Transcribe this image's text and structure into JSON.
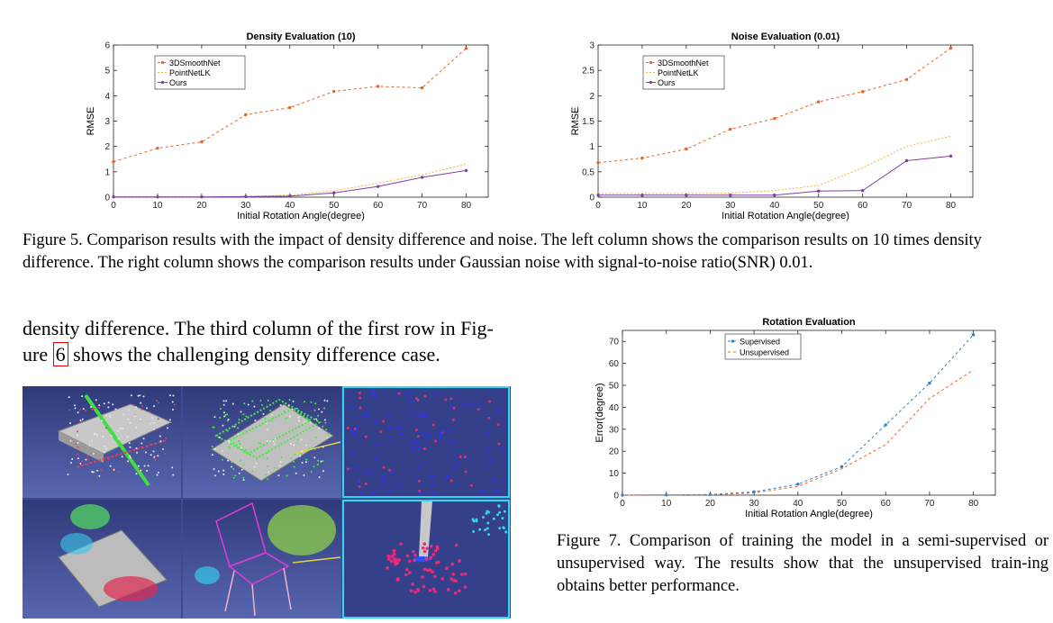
{
  "figure5": {
    "caption": "Figure 5. Comparison results with the impact of density difference and noise. The left column shows the comparison results on 10 times density difference. The right column shows the comparison results under Gaussian noise with signal-to-noise ratio(SNR) 0.01."
  },
  "body": {
    "text_before": "density difference. The third column of the first row in Fig-ure ",
    "ref": "6",
    "text_after": " shows the challenging density difference case."
  },
  "figure7": {
    "caption": "Figure 7. Comparison of training the model in a semi-supervised or unsupervised way. The results show that the unsupervised train-ing obtains better performance."
  },
  "figure6_images": {
    "description_icons": [
      "point-cloud-table",
      "point-cloud-box",
      "point-cloud-zoom-blue",
      "point-cloud-multi",
      "point-cloud-chair",
      "point-cloud-zoom-pink"
    ]
  },
  "chart_data": [
    {
      "type": "line",
      "title": "Density Evaluation (10)",
      "xlabel": "Initial Rotation Angle(degree)",
      "ylabel": "RMSE",
      "x": [
        0,
        10,
        20,
        30,
        40,
        50,
        60,
        70,
        80
      ],
      "xlim": [
        0,
        85
      ],
      "ylim": [
        0,
        6
      ],
      "xticks": [
        0,
        10,
        20,
        30,
        40,
        50,
        60,
        70,
        80
      ],
      "yticks": [
        0,
        1,
        2,
        3,
        4,
        5,
        6
      ],
      "legend_position": "top-left",
      "series": [
        {
          "name": "3DSmoothNet",
          "color": "#e0642a",
          "dash": "3,3",
          "marker": "dot",
          "values": [
            1.4,
            1.93,
            2.18,
            3.25,
            3.53,
            4.17,
            4.37,
            4.31,
            5.87
          ]
        },
        {
          "name": "PointNetLK",
          "color": "#f0b63c",
          "dash": "2,2",
          "marker": "none",
          "values": [
            0.02,
            0.02,
            0.02,
            0.03,
            0.08,
            0.25,
            0.55,
            0.88,
            1.3
          ]
        },
        {
          "name": "Ours",
          "color": "#7d3fa6",
          "dash": "",
          "marker": "dot",
          "values": [
            0.01,
            0.01,
            0.01,
            0.02,
            0.04,
            0.17,
            0.42,
            0.78,
            1.05
          ]
        }
      ]
    },
    {
      "type": "line",
      "title": "Noise Evaluation (0.01)",
      "xlabel": "Initial Rotation Angle(degree)",
      "ylabel": "RMSE",
      "x": [
        0,
        10,
        20,
        30,
        40,
        50,
        60,
        70,
        80
      ],
      "xlim": [
        0,
        85
      ],
      "ylim": [
        0,
        3
      ],
      "xticks": [
        0,
        10,
        20,
        30,
        40,
        50,
        60,
        70,
        80
      ],
      "yticks": [
        0,
        0.5,
        1,
        1.5,
        2,
        2.5,
        3
      ],
      "legend_position": "top-left",
      "series": [
        {
          "name": "3DSmoothNet",
          "color": "#e0642a",
          "dash": "3,3",
          "marker": "dot",
          "values": [
            0.68,
            0.77,
            0.95,
            1.34,
            1.55,
            1.88,
            2.08,
            2.32,
            2.94
          ]
        },
        {
          "name": "PointNetLK",
          "color": "#f0b63c",
          "dash": "2,2",
          "marker": "none",
          "values": [
            0.07,
            0.07,
            0.07,
            0.08,
            0.13,
            0.23,
            0.58,
            1.0,
            1.2
          ]
        },
        {
          "name": "Ours",
          "color": "#7d3fa6",
          "dash": "",
          "marker": "dot",
          "values": [
            0.04,
            0.04,
            0.04,
            0.04,
            0.04,
            0.12,
            0.13,
            0.72,
            0.81
          ]
        }
      ]
    },
    {
      "type": "line",
      "title": "Rotation Evaluation",
      "xlabel": "Initial Rotation Angle(degree)",
      "ylabel": "Error(degree)",
      "x": [
        0,
        10,
        20,
        30,
        40,
        50,
        60,
        70,
        80
      ],
      "xlim": [
        0,
        85
      ],
      "ylim": [
        0,
        75
      ],
      "xticks": [
        0,
        10,
        20,
        30,
        40,
        50,
        60,
        70,
        80
      ],
      "yticks": [
        0,
        10,
        20,
        30,
        40,
        50,
        60,
        70
      ],
      "legend_position": "top-left",
      "series": [
        {
          "name": "Supervised",
          "color": "#2f7fc1",
          "dash": "3,3",
          "marker": "dot",
          "values": [
            0,
            0.1,
            0.3,
            1.5,
            5,
            13,
            32,
            51,
            73
          ]
        },
        {
          "name": "Unsupervised",
          "color": "#e0642a",
          "dash": "3,3",
          "marker": "none",
          "values": [
            0,
            0.1,
            0.2,
            1.0,
            4,
            12,
            23,
            44,
            57
          ]
        }
      ]
    }
  ]
}
